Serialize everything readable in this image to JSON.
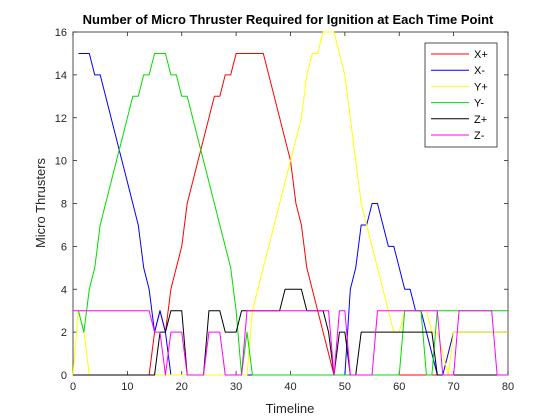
{
  "chart_data": {
    "type": "line",
    "title": "Number of Micro Thruster Required for Ignition at Each Time Point",
    "xlabel": "Timeline",
    "ylabel": "Micro Thrusters",
    "xlim": [
      0,
      80
    ],
    "ylim": [
      0,
      16
    ],
    "xticks": [
      0,
      10,
      20,
      30,
      40,
      50,
      60,
      70,
      80
    ],
    "yticks": [
      0,
      2,
      4,
      6,
      8,
      10,
      12,
      14,
      16
    ],
    "grid": false,
    "legend_position": "top-right",
    "series": [
      {
        "name": "X+",
        "color": "#ff0000",
        "points": [
          [
            0,
            0
          ],
          [
            14,
            0
          ],
          [
            15,
            2
          ],
          [
            16,
            3
          ],
          [
            17,
            2
          ],
          [
            18,
            4
          ],
          [
            19,
            5
          ],
          [
            20,
            6
          ],
          [
            21,
            8
          ],
          [
            22,
            9
          ],
          [
            23,
            10
          ],
          [
            24,
            11
          ],
          [
            25,
            12
          ],
          [
            26,
            13
          ],
          [
            27,
            13
          ],
          [
            28,
            14
          ],
          [
            29,
            14
          ],
          [
            30,
            15
          ],
          [
            35,
            15
          ],
          [
            36,
            14
          ],
          [
            37,
            13
          ],
          [
            38,
            12
          ],
          [
            39,
            11
          ],
          [
            40,
            10
          ],
          [
            41,
            8
          ],
          [
            42,
            7
          ],
          [
            43,
            5
          ],
          [
            44,
            4
          ],
          [
            45,
            3
          ],
          [
            46,
            2
          ],
          [
            47,
            1
          ],
          [
            48,
            0
          ],
          [
            80,
            0
          ]
        ]
      },
      {
        "name": "X-",
        "color": "#0000ff",
        "points": [
          [
            1,
            15
          ],
          [
            3,
            15
          ],
          [
            4,
            14
          ],
          [
            5,
            14
          ],
          [
            6,
            13
          ],
          [
            7,
            12
          ],
          [
            8,
            11
          ],
          [
            9,
            10
          ],
          [
            10,
            9
          ],
          [
            11,
            8
          ],
          [
            12,
            7
          ],
          [
            13,
            5
          ],
          [
            14,
            4
          ],
          [
            15,
            2
          ],
          [
            16,
            3
          ],
          [
            17,
            2
          ],
          [
            18,
            0
          ],
          [
            50,
            0
          ],
          [
            51,
            4
          ],
          [
            52,
            5
          ],
          [
            53,
            7
          ],
          [
            54,
            7
          ],
          [
            55,
            8
          ],
          [
            56,
            8
          ],
          [
            57,
            7
          ],
          [
            58,
            6
          ],
          [
            59,
            6
          ],
          [
            60,
            5
          ],
          [
            61,
            4
          ],
          [
            62,
            4
          ],
          [
            63,
            3
          ],
          [
            64,
            3
          ],
          [
            65,
            2
          ],
          [
            66,
            1
          ],
          [
            67,
            0
          ],
          [
            68,
            0
          ],
          [
            69,
            1
          ],
          [
            70,
            2
          ],
          [
            80,
            2
          ]
        ]
      },
      {
        "name": "Y+",
        "color": "#ffff00",
        "points": [
          [
            0,
            0
          ],
          [
            1,
            3
          ],
          [
            2,
            2
          ],
          [
            3,
            0
          ],
          [
            32,
            0
          ],
          [
            33,
            3
          ],
          [
            34,
            4
          ],
          [
            35,
            5
          ],
          [
            36,
            6
          ],
          [
            37,
            7
          ],
          [
            38,
            8
          ],
          [
            39,
            9
          ],
          [
            40,
            10
          ],
          [
            41,
            11
          ],
          [
            42,
            12
          ],
          [
            43,
            14
          ],
          [
            44,
            15
          ],
          [
            45,
            15
          ],
          [
            46,
            16
          ],
          [
            48,
            16
          ],
          [
            49,
            15
          ],
          [
            50,
            14
          ],
          [
            51,
            12
          ],
          [
            52,
            10
          ],
          [
            53,
            8
          ],
          [
            54,
            7
          ],
          [
            55,
            6
          ],
          [
            56,
            5
          ],
          [
            57,
            4
          ],
          [
            58,
            3
          ],
          [
            59,
            2
          ],
          [
            60,
            2
          ],
          [
            61,
            3
          ],
          [
            65,
            3
          ],
          [
            66,
            2
          ],
          [
            67,
            2
          ],
          [
            68,
            1
          ],
          [
            69,
            0
          ],
          [
            70,
            2
          ],
          [
            80,
            2
          ]
        ]
      },
      {
        "name": "Y-",
        "color": "#00dd00",
        "points": [
          [
            1,
            3
          ],
          [
            2,
            2
          ],
          [
            3,
            4
          ],
          [
            4,
            5
          ],
          [
            5,
            7
          ],
          [
            6,
            8
          ],
          [
            7,
            9
          ],
          [
            8,
            10
          ],
          [
            9,
            11
          ],
          [
            10,
            12
          ],
          [
            11,
            13
          ],
          [
            12,
            13
          ],
          [
            13,
            14
          ],
          [
            14,
            14
          ],
          [
            15,
            15
          ],
          [
            17,
            15
          ],
          [
            18,
            14
          ],
          [
            19,
            14
          ],
          [
            20,
            13
          ],
          [
            21,
            13
          ],
          [
            22,
            12
          ],
          [
            23,
            11
          ],
          [
            24,
            10
          ],
          [
            25,
            9
          ],
          [
            26,
            8
          ],
          [
            27,
            7
          ],
          [
            28,
            6
          ],
          [
            29,
            5
          ],
          [
            30,
            3
          ],
          [
            31,
            0
          ],
          [
            32,
            2
          ],
          [
            33,
            0
          ],
          [
            60,
            0
          ],
          [
            61,
            3
          ],
          [
            64,
            3
          ],
          [
            65,
            0
          ],
          [
            66,
            0
          ],
          [
            67,
            3
          ],
          [
            80,
            3
          ]
        ]
      },
      {
        "name": "Z+",
        "color": "#000000",
        "points": [
          [
            0,
            0
          ],
          [
            15,
            0
          ],
          [
            16,
            2
          ],
          [
            17,
            2
          ],
          [
            18,
            3
          ],
          [
            20,
            3
          ],
          [
            21,
            0
          ],
          [
            24,
            0
          ],
          [
            25,
            3
          ],
          [
            27,
            3
          ],
          [
            28,
            2
          ],
          [
            30,
            2
          ],
          [
            31,
            3
          ],
          [
            38,
            3
          ],
          [
            39,
            4
          ],
          [
            42,
            4
          ],
          [
            43,
            3
          ],
          [
            46,
            3
          ],
          [
            47,
            2
          ],
          [
            48,
            0
          ],
          [
            49,
            2
          ],
          [
            50,
            2
          ],
          [
            51,
            0
          ],
          [
            52,
            0
          ],
          [
            53,
            2
          ],
          [
            66,
            2
          ],
          [
            67,
            0
          ],
          [
            80,
            0
          ]
        ]
      },
      {
        "name": "Z-",
        "color": "#ff00ff",
        "points": [
          [
            0,
            3
          ],
          [
            14,
            3
          ],
          [
            15,
            2
          ],
          [
            16,
            2
          ],
          [
            17,
            0
          ],
          [
            18,
            2
          ],
          [
            20,
            2
          ],
          [
            21,
            0
          ],
          [
            24,
            0
          ],
          [
            25,
            2
          ],
          [
            27,
            2
          ],
          [
            28,
            0
          ],
          [
            31,
            0
          ],
          [
            32,
            3
          ],
          [
            47,
            3
          ],
          [
            48,
            0
          ],
          [
            49,
            3
          ],
          [
            50,
            3
          ],
          [
            51,
            0
          ],
          [
            55,
            0
          ],
          [
            56,
            3
          ],
          [
            67,
            3
          ],
          [
            68,
            0
          ],
          [
            70,
            0
          ],
          [
            71,
            3
          ],
          [
            77,
            3
          ],
          [
            78,
            0
          ],
          [
            80,
            0
          ]
        ]
      }
    ]
  }
}
